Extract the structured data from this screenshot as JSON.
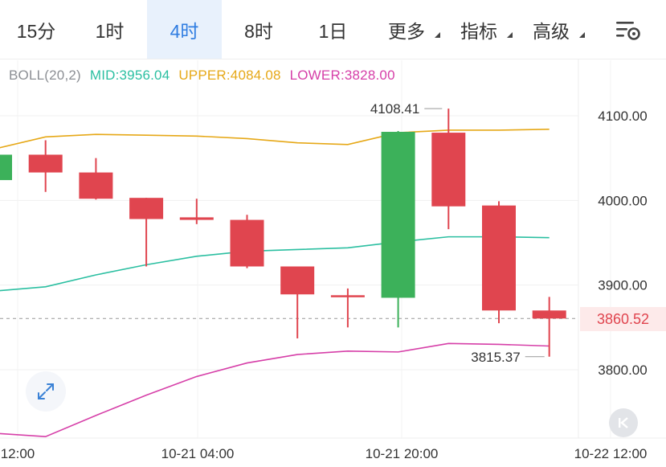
{
  "toolbar": {
    "tabs": [
      {
        "label": "15分"
      },
      {
        "label": "1时"
      },
      {
        "label": "4时"
      },
      {
        "label": "8时"
      },
      {
        "label": "1日"
      },
      {
        "label": "更多"
      },
      {
        "label": "指标"
      },
      {
        "label": "高级"
      }
    ],
    "active_tab": "4时",
    "settings_icon": "chart-settings-icon"
  },
  "legend": {
    "indicator": "BOLL(20,2)",
    "mid": "MID:3956.04",
    "upper": "UPPER:4084.08",
    "lower": "LOWER:3828.00"
  },
  "colors": {
    "up": "#3cb15a",
    "down": "#e0454f",
    "mid": "#2bbfa1",
    "upper": "#e6a817",
    "lower": "#d63fa8",
    "active_tab_bg": "#e8f1fc",
    "active_tab_text": "#2f7de1"
  },
  "price_tag": "3860.52",
  "annotations": {
    "high": "4108.41",
    "low": "3815.37"
  },
  "chart_data": {
    "type": "candlestick",
    "y_ticks": [
      "4100.00",
      "4000.00",
      "3900.00",
      "3800.00"
    ],
    "x_ticks": [
      "12:00",
      "10-21 04:00",
      "10-21 20:00",
      "10-22 12:00"
    ],
    "ylim": [
      3720,
      4160
    ],
    "current_price": 3860.52,
    "candles": [
      {
        "open": 4024,
        "close": 4054,
        "high": 4058,
        "low": 4020
      },
      {
        "open": 4054,
        "close": 4033,
        "high": 4071,
        "low": 4010
      },
      {
        "open": 4033,
        "close": 4002,
        "high": 4050,
        "low": 4001
      },
      {
        "open": 4003,
        "close": 3978,
        "high": 4003,
        "low": 3922
      },
      {
        "open": 3980,
        "close": 3977,
        "high": 4002,
        "low": 3972
      },
      {
        "open": 3977,
        "close": 3922,
        "high": 3983,
        "low": 3920
      },
      {
        "open": 3922,
        "close": 3889,
        "high": 3922,
        "low": 3837
      },
      {
        "open": 3888,
        "close": 3886,
        "high": 3896,
        "low": 3850
      },
      {
        "open": 3885,
        "close": 4081,
        "high": 4082,
        "low": 3850
      },
      {
        "open": 4080,
        "close": 3993,
        "high": 4108.41,
        "low": 3966
      },
      {
        "open": 3994,
        "close": 3870,
        "high": 3999,
        "low": 3855
      },
      {
        "open": 3870,
        "close": 3860.52,
        "high": 3886,
        "low": 3815.37
      }
    ],
    "boll_upper": [
      4061,
      4075,
      4078,
      4077,
      4076,
      4073,
      4068,
      4066,
      4080,
      4083,
      4083,
      4084
    ],
    "boll_mid": [
      3893,
      3898,
      3912,
      3924,
      3934,
      3940,
      3942,
      3944,
      3951,
      3957,
      3957,
      3956
    ],
    "boll_lower": [
      3725,
      3721,
      3746,
      3770,
      3792,
      3808,
      3818,
      3822,
      3821,
      3831,
      3830,
      3828
    ]
  }
}
